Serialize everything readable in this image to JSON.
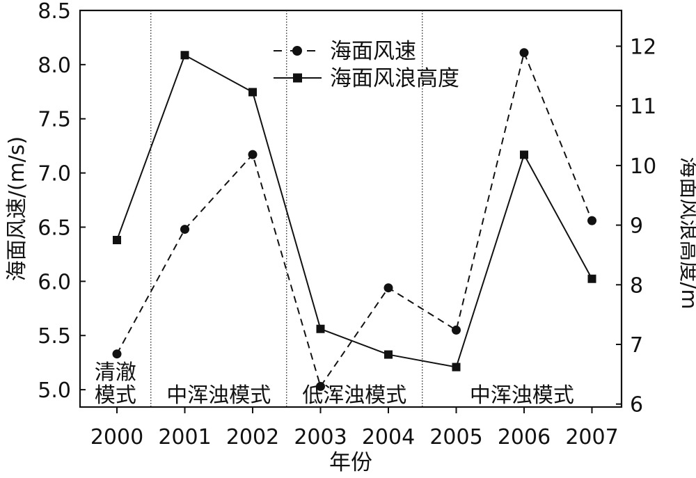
{
  "chart_data": {
    "type": "line",
    "x": [
      "2000",
      "2001",
      "2002",
      "2003",
      "2004",
      "2005",
      "2006",
      "2007"
    ],
    "xlabel": "年份",
    "ylabel_left": "海面风速/(m/s)",
    "ylabel_right": "海面风浪高度/m",
    "ylim_left": [
      4.84,
      8.5
    ],
    "ylim_right": [
      5.95,
      12.6
    ],
    "yticks_left": [
      "5.0",
      "5.5",
      "6.0",
      "6.5",
      "7.0",
      "7.5",
      "8.0",
      "8.5"
    ],
    "yticks_right": [
      "6",
      "7",
      "8",
      "9",
      "10",
      "11",
      "12"
    ],
    "series": [
      {
        "name": "海面风速",
        "axis": "left",
        "style": "dashed",
        "marker": "circle",
        "values": [
          5.33,
          6.48,
          7.17,
          5.03,
          5.94,
          5.55,
          8.11,
          6.56
        ]
      },
      {
        "name": "海面风浪高度",
        "axis": "right",
        "style": "solid",
        "marker": "square",
        "values": [
          8.75,
          11.85,
          11.23,
          7.26,
          6.83,
          6.62,
          10.18,
          8.1
        ]
      }
    ],
    "regions": [
      {
        "label_lines": [
          "清澈",
          "模式"
        ]
      },
      {
        "label_lines": [
          "中浑浊模式"
        ]
      },
      {
        "label_lines": [
          "低浑浊模式"
        ]
      },
      {
        "label_lines": [
          "中浑浊模式"
        ]
      }
    ],
    "region_boundaries": [
      2000.5,
      2002.5,
      2004.5
    ],
    "legend_position": "top-center",
    "grid": false
  }
}
